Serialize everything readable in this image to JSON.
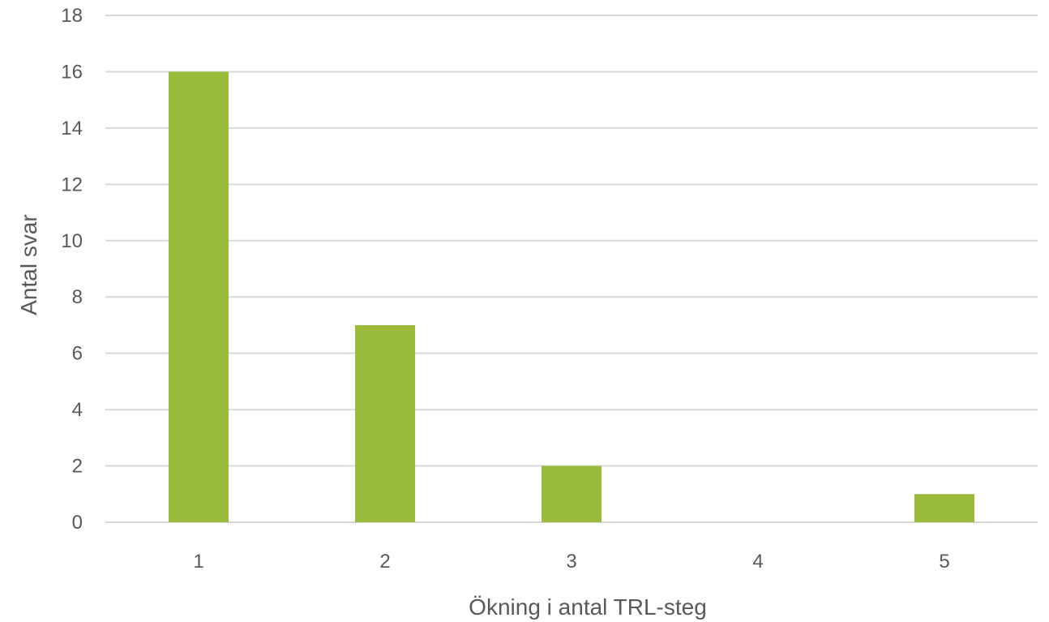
{
  "chart_data": {
    "type": "bar",
    "title": "",
    "xlabel": "Ökning i antal TRL-steg",
    "ylabel": "Antal svar",
    "categories": [
      "1",
      "2",
      "3",
      "4",
      "5"
    ],
    "values": [
      16,
      7,
      2,
      0,
      1
    ],
    "ylim": [
      0,
      18
    ],
    "yticks": [
      0,
      2,
      4,
      6,
      8,
      10,
      12,
      14,
      16,
      18
    ],
    "grid": true,
    "legend": "none",
    "colors": {
      "bar": "#9bbb3b"
    }
  }
}
